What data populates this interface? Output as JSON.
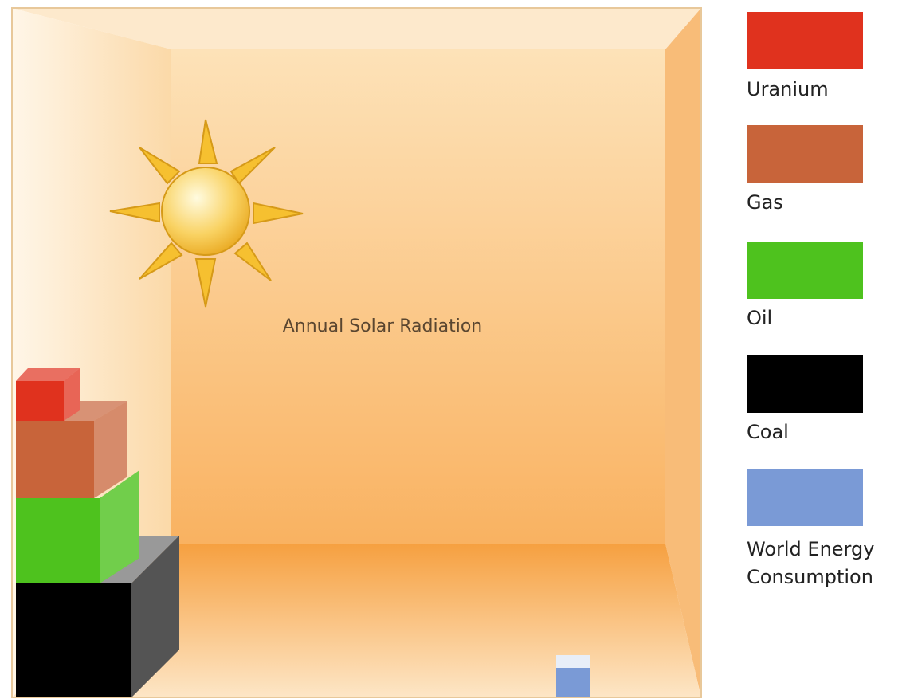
{
  "title": "Annual Solar Radiation",
  "legend": {
    "items": [
      {
        "label": "Uranium",
        "color": "#e0321e"
      },
      {
        "label": "Gas",
        "color": "#c8643a"
      },
      {
        "label": "Oil",
        "color": "#4ec21e"
      },
      {
        "label": "Coal",
        "color": "#000000"
      },
      {
        "label": "World Energy Consumption",
        "color": "#7a9ad6"
      }
    ]
  }
}
